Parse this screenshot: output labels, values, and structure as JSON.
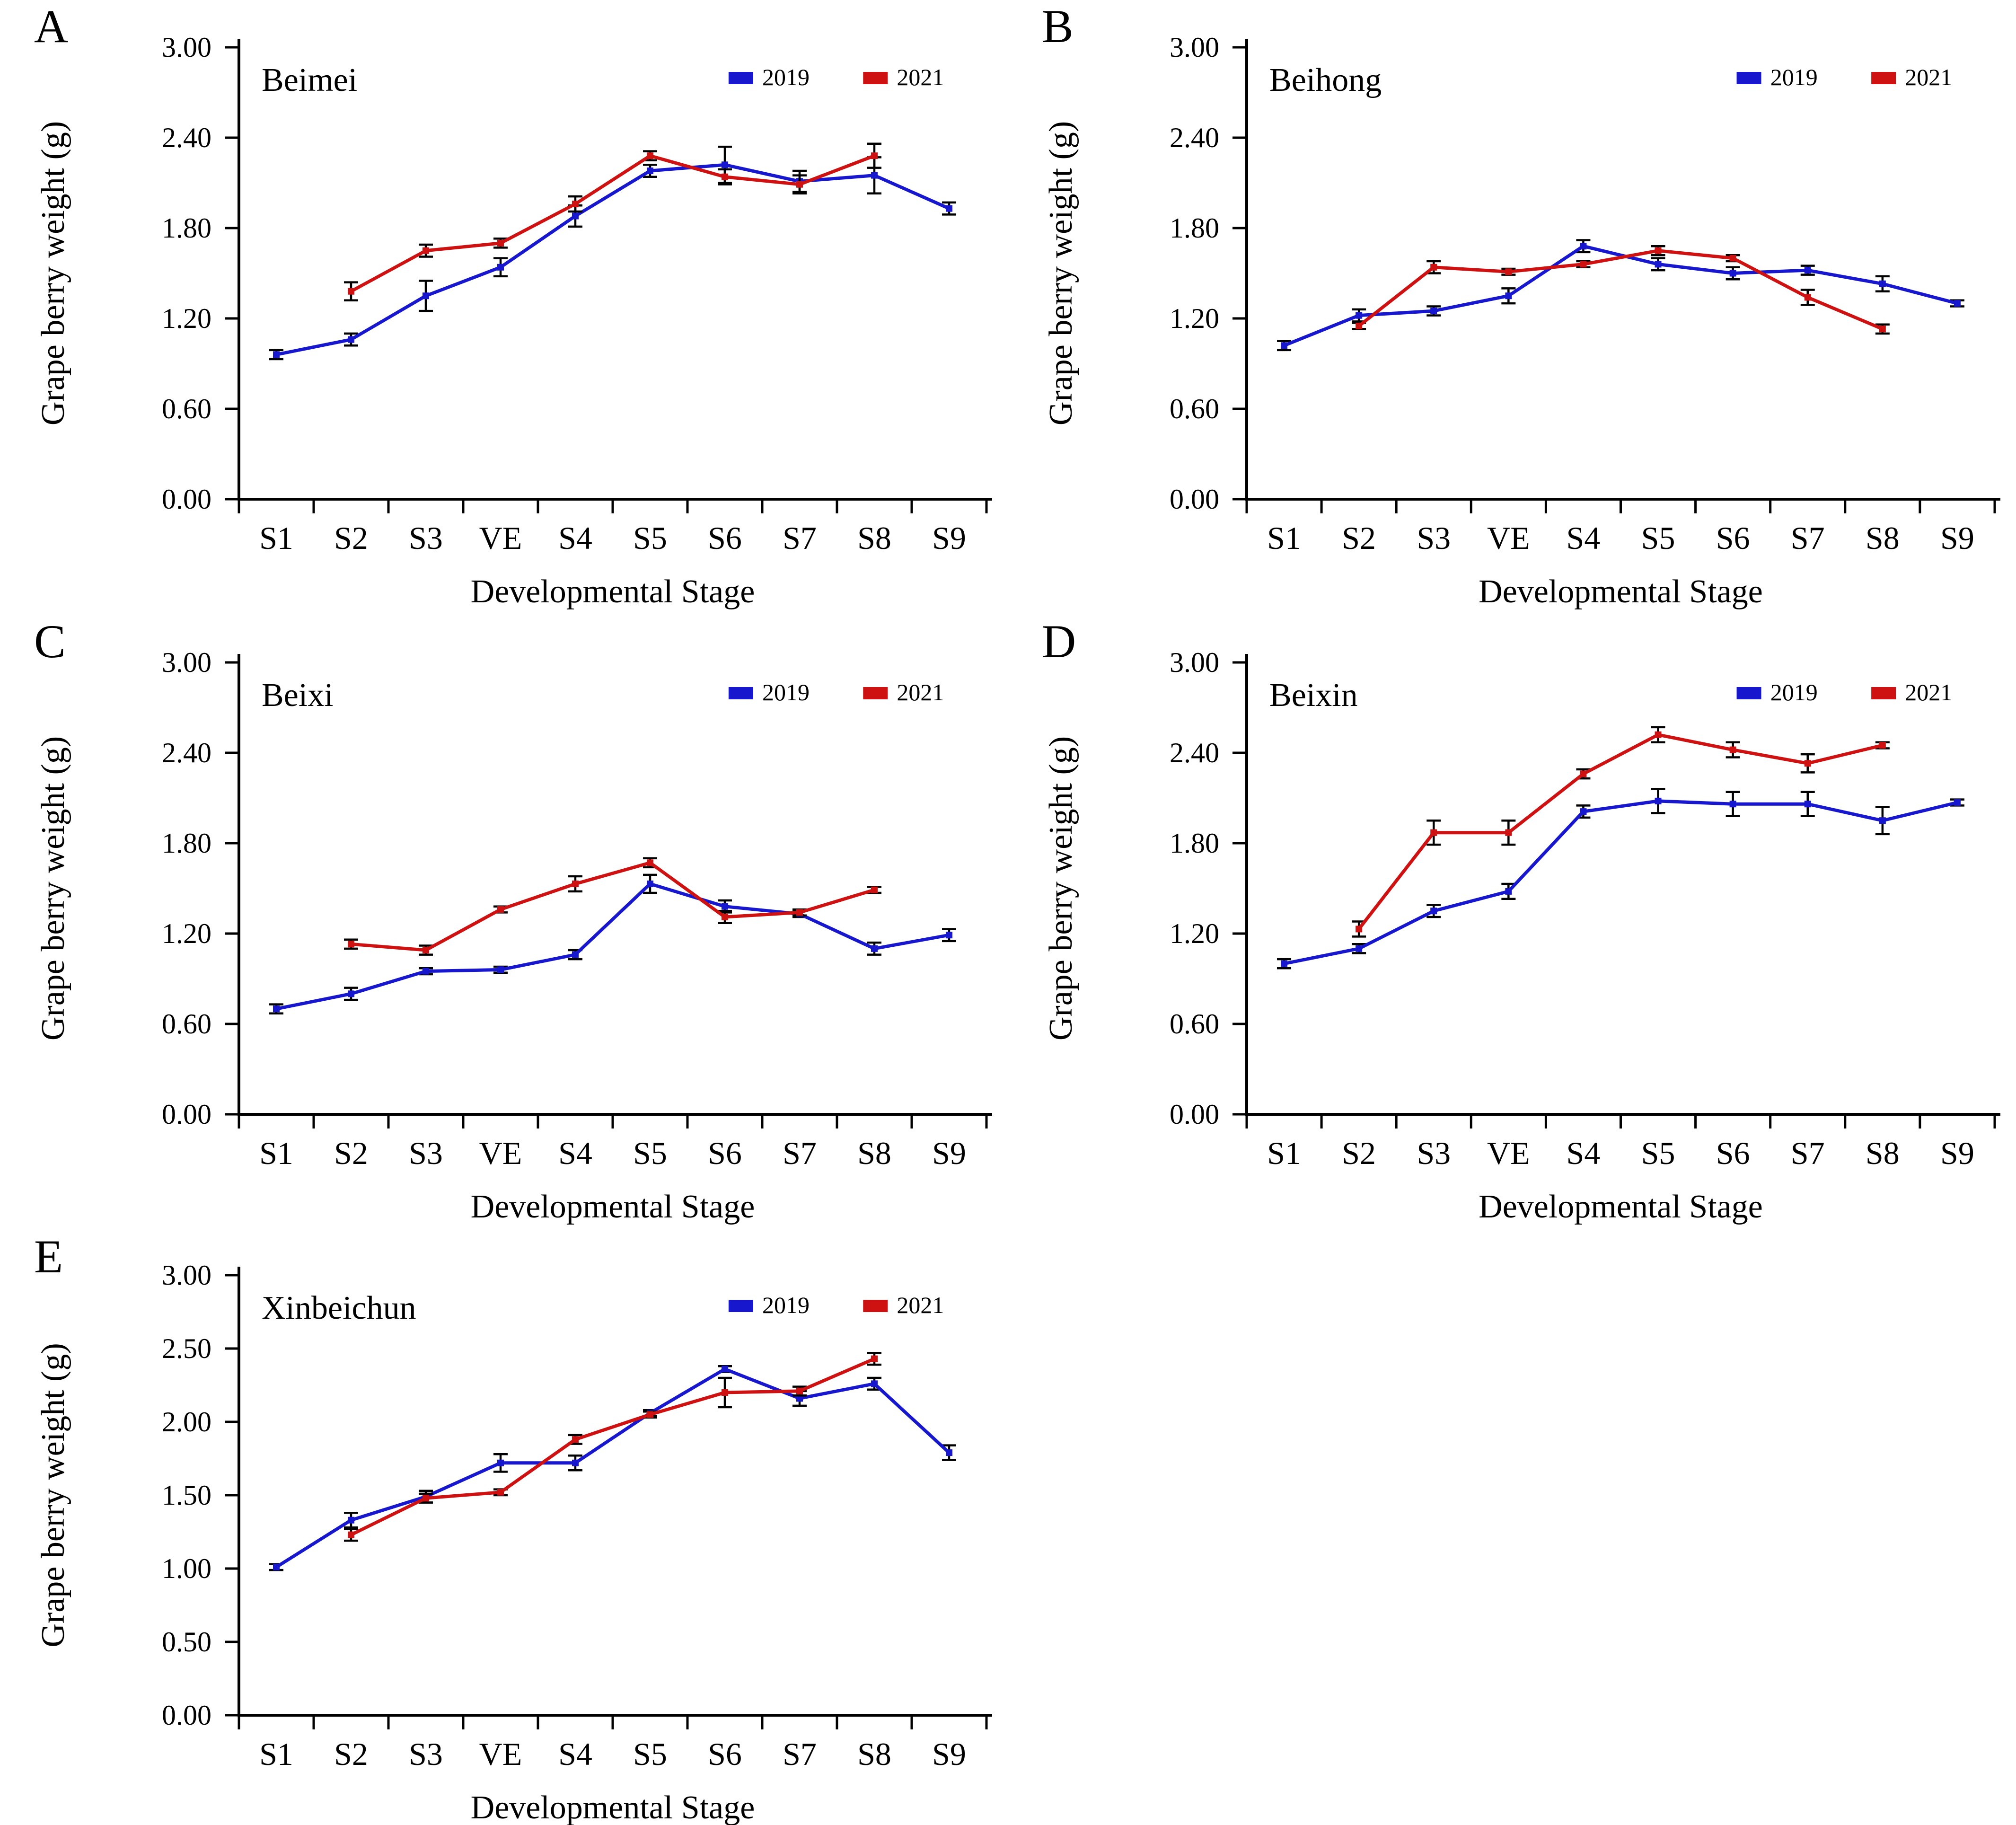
{
  "figure": {
    "background": "#ffffff",
    "axis_color": "#000000",
    "series_colors": {
      "y2019": "#1717CE",
      "y2021": "#CE1212"
    },
    "legend": {
      "labels": [
        "2019",
        "2021"
      ]
    },
    "shared": {
      "xlabel": "Developmental Stage",
      "ylabel": "Grape berry weight (g)",
      "categories": [
        "S1",
        "S2",
        "S3",
        "VE",
        "S4",
        "S5",
        "S6",
        "S7",
        "S8",
        "S9"
      ]
    }
  },
  "chart_data": [
    {
      "type": "line",
      "panel_label": "A",
      "title": "Beimei",
      "xlabel": "Developmental Stage",
      "ylabel": "Grape berry weight (g)",
      "categories": [
        "S1",
        "S2",
        "S3",
        "VE",
        "S4",
        "S5",
        "S6",
        "S7",
        "S8",
        "S9"
      ],
      "ylim": [
        0.0,
        3.0
      ],
      "ytick_step": 0.6,
      "ytick_labels": [
        "0.00",
        "0.60",
        "1.20",
        "1.80",
        "2.40",
        "3.00"
      ],
      "legend_position": "top-right-inside",
      "grid": false,
      "series": [
        {
          "name": "2019",
          "color": "#1717CE",
          "values": [
            0.96,
            1.06,
            1.35,
            1.54,
            1.88,
            2.18,
            2.22,
            2.11,
            2.15,
            1.93
          ],
          "errors": [
            0.03,
            0.04,
            0.1,
            0.06,
            0.07,
            0.04,
            0.12,
            0.07,
            0.12,
            0.04
          ]
        },
        {
          "name": "2021",
          "color": "#CE1212",
          "values": [
            null,
            1.38,
            1.65,
            1.7,
            1.96,
            2.28,
            2.14,
            2.09,
            2.28,
            null
          ],
          "errors": [
            null,
            0.06,
            0.04,
            0.03,
            0.05,
            0.03,
            0.05,
            0.06,
            0.08,
            null
          ]
        }
      ]
    },
    {
      "type": "line",
      "panel_label": "B",
      "title": "Beihong",
      "xlabel": "Developmental Stage",
      "ylabel": "Grape  berry weight (g)",
      "categories": [
        "S1",
        "S2",
        "S3",
        "VE",
        "S4",
        "S5",
        "S6",
        "S7",
        "S8",
        "S9"
      ],
      "ylim": [
        0.0,
        3.0
      ],
      "ytick_step": 0.6,
      "ytick_labels": [
        "0.00",
        "0.60",
        "1.20",
        "1.80",
        "2.40",
        "3.00"
      ],
      "legend_position": "top-right-inside",
      "grid": false,
      "series": [
        {
          "name": "2019",
          "color": "#1717CE",
          "values": [
            1.02,
            1.22,
            1.25,
            1.35,
            1.68,
            1.56,
            1.5,
            1.52,
            1.43,
            1.3
          ],
          "errors": [
            0.03,
            0.04,
            0.03,
            0.05,
            0.04,
            0.04,
            0.04,
            0.03,
            0.05,
            0.02
          ]
        },
        {
          "name": "2021",
          "color": "#CE1212",
          "values": [
            null,
            1.15,
            1.54,
            1.51,
            1.56,
            1.65,
            1.6,
            1.34,
            1.13,
            null
          ],
          "errors": [
            null,
            0.02,
            0.04,
            0.02,
            0.02,
            0.03,
            0.02,
            0.05,
            0.03,
            null
          ]
        }
      ]
    },
    {
      "type": "line",
      "panel_label": "C",
      "title": "Beixi",
      "xlabel": "Developmental Stage",
      "ylabel": "Grape berry weight (g)",
      "categories": [
        "S1",
        "S2",
        "S3",
        "VE",
        "S4",
        "S5",
        "S6",
        "S7",
        "S8",
        "S9"
      ],
      "ylim": [
        0.0,
        3.0
      ],
      "ytick_step": 0.6,
      "ytick_labels": [
        "0.00",
        "0.60",
        "1.20",
        "1.80",
        "2.40",
        "3.00"
      ],
      "legend_position": "top-right-inside",
      "grid": false,
      "series": [
        {
          "name": "2019",
          "color": "#1717CE",
          "values": [
            0.7,
            0.8,
            0.95,
            0.96,
            1.06,
            1.53,
            1.38,
            1.33,
            1.1,
            1.19
          ],
          "errors": [
            0.03,
            0.04,
            0.02,
            0.02,
            0.03,
            0.06,
            0.04,
            0.02,
            0.04,
            0.04
          ]
        },
        {
          "name": "2021",
          "color": "#CE1212",
          "values": [
            null,
            1.13,
            1.09,
            1.36,
            1.53,
            1.67,
            1.31,
            1.34,
            1.49,
            null
          ],
          "errors": [
            null,
            0.03,
            0.03,
            0.02,
            0.05,
            0.03,
            0.04,
            0.02,
            0.02,
            null
          ]
        }
      ]
    },
    {
      "type": "line",
      "panel_label": "D",
      "title": "Beixin",
      "xlabel": "Developmental Stage",
      "ylabel": "Grape berry weight (g)",
      "categories": [
        "S1",
        "S2",
        "S3",
        "VE",
        "S4",
        "S5",
        "S6",
        "S7",
        "S8",
        "S9"
      ],
      "ylim": [
        0.0,
        3.0
      ],
      "ytick_step": 0.6,
      "ytick_labels": [
        "0.00",
        "0.60",
        "1.20",
        "1.80",
        "2.40",
        "3.00"
      ],
      "legend_position": "top-right-inside",
      "grid": false,
      "series": [
        {
          "name": "2019",
          "color": "#1717CE",
          "values": [
            1.0,
            1.1,
            1.35,
            1.48,
            2.01,
            2.08,
            2.06,
            2.06,
            1.95,
            2.07
          ],
          "errors": [
            0.03,
            0.03,
            0.04,
            0.05,
            0.04,
            0.08,
            0.08,
            0.08,
            0.09,
            0.02
          ]
        },
        {
          "name": "2021",
          "color": "#CE1212",
          "values": [
            null,
            1.23,
            1.87,
            1.87,
            2.26,
            2.52,
            2.42,
            2.33,
            2.45,
            null
          ],
          "errors": [
            null,
            0.05,
            0.08,
            0.08,
            0.03,
            0.05,
            0.05,
            0.06,
            0.02,
            null
          ]
        }
      ]
    },
    {
      "type": "line",
      "panel_label": "E",
      "title": "Xinbeichun",
      "xlabel": "Developmental Stage",
      "ylabel": "Grape berry weight (g)",
      "categories": [
        "S1",
        "S2",
        "S3",
        "VE",
        "S4",
        "S5",
        "S6",
        "S7",
        "S8",
        "S9"
      ],
      "ylim": [
        0.0,
        3.0
      ],
      "ytick_step": 0.5,
      "ytick_labels": [
        "0.00",
        "0.50",
        "1.00",
        "1.50",
        "2.00",
        "2.50",
        "3.00"
      ],
      "legend_position": "top-right-inside",
      "grid": false,
      "series": [
        {
          "name": "2019",
          "color": "#1717CE",
          "values": [
            1.01,
            1.33,
            1.49,
            1.72,
            1.72,
            2.06,
            2.36,
            2.16,
            2.26,
            1.79
          ],
          "errors": [
            0.02,
            0.05,
            0.04,
            0.06,
            0.05,
            0.02,
            0.02,
            0.05,
            0.04,
            0.05
          ]
        },
        {
          "name": "2021",
          "color": "#CE1212",
          "values": [
            null,
            1.23,
            1.48,
            1.52,
            1.88,
            2.05,
            2.2,
            2.21,
            2.43,
            null
          ],
          "errors": [
            null,
            0.04,
            0.03,
            0.02,
            0.03,
            0.02,
            0.1,
            0.03,
            0.04,
            null
          ]
        }
      ]
    }
  ]
}
